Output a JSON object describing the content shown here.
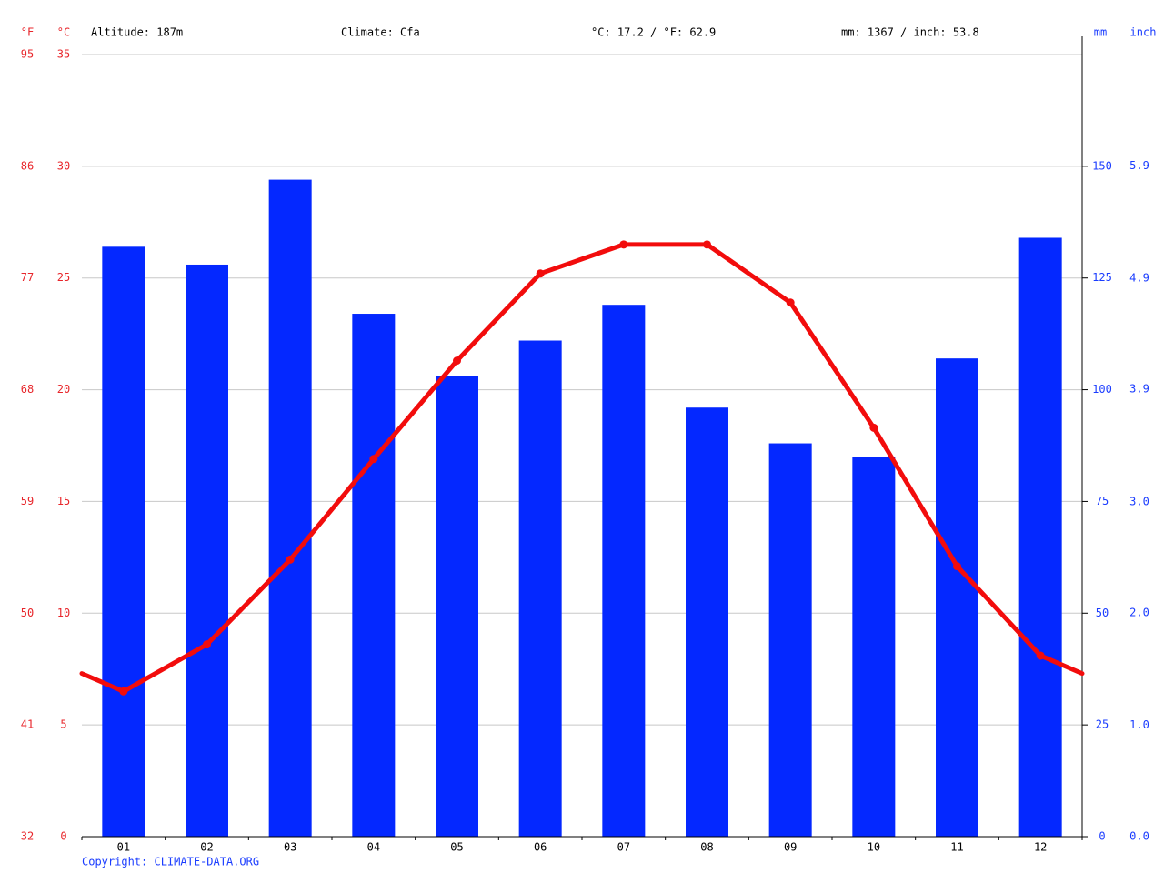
{
  "chart_data": {
    "type": "bar+line",
    "header": {
      "altitude": "Altitude: 187m",
      "climate": "Climate: Cfa",
      "temp_mean": "°C: 17.2 / °F: 62.9",
      "precip_total": "mm: 1367 / inch: 53.8"
    },
    "axis_labels": {
      "f": "°F",
      "c": "°C",
      "mm": "mm",
      "inch": "inch"
    },
    "copyright": "Copyright: CLIMATE-DATA.ORG",
    "categories": [
      "01",
      "02",
      "03",
      "04",
      "05",
      "06",
      "07",
      "08",
      "09",
      "10",
      "11",
      "12"
    ],
    "series": [
      {
        "name": "Precipitation",
        "color": "#0428ff",
        "axis": "y2",
        "kind": "bar",
        "values": [
          132,
          128,
          147,
          117,
          103,
          111,
          119,
          96,
          88,
          85,
          107,
          134
        ]
      },
      {
        "name": "Temperature",
        "color": "#f20c0c",
        "kind": "line",
        "values": [
          6.5,
          8.6,
          12.4,
          16.9,
          21.3,
          25.2,
          26.5,
          26.5,
          23.9,
          18.3,
          12.1,
          8.1
        ]
      }
    ],
    "ylim": [
      0,
      35
    ],
    "yticks": [
      0,
      5,
      10,
      15,
      20,
      25,
      30,
      35
    ],
    "yflim": [
      32,
      95
    ],
    "yfticks": [
      32,
      41,
      50,
      59,
      68,
      77,
      86,
      95
    ],
    "y2lim": [
      0,
      175
    ],
    "y2ticks": [
      0,
      25,
      50,
      75,
      100,
      125,
      150
    ],
    "y3lim": [
      0,
      6.89
    ],
    "y3ticks": [
      {
        "value": 0,
        "label": "0.0"
      },
      {
        "value": 0.98,
        "label": "1.0"
      },
      {
        "value": 1.97,
        "label": "2.0"
      },
      {
        "value": 2.95,
        "label": "3.0"
      },
      {
        "value": 3.94,
        "label": "3.9"
      },
      {
        "value": 4.92,
        "label": "4.9"
      },
      {
        "value": 5.91,
        "label": "5.9"
      }
    ],
    "grid": true
  }
}
